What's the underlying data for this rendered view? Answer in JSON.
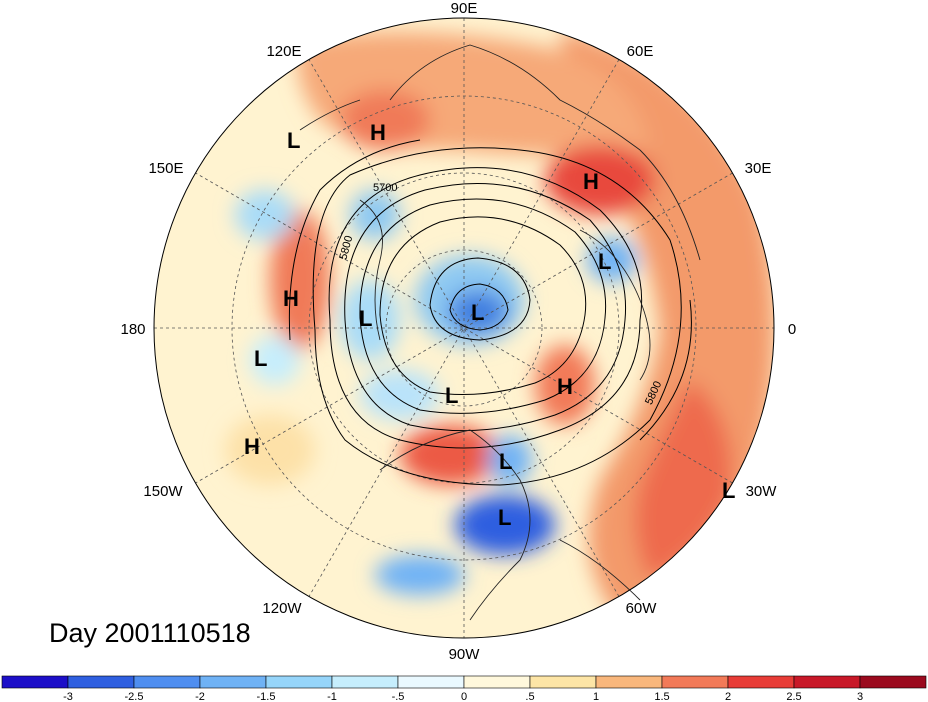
{
  "title": "Day 2001110518",
  "longitude_labels": {
    "lon_90e": "90E",
    "lon_60e": "60E",
    "lon_30e": "30E",
    "lon_0": "0",
    "lon_30w": "30W",
    "lon_60w": "60W",
    "lon_90w": "90W",
    "lon_120w": "120W",
    "lon_150w": "150W",
    "lon_180": "180",
    "lon_150e": "150E",
    "lon_120e": "120E"
  },
  "contour_labels": [
    "5700",
    "5800",
    "5800"
  ],
  "pressure_centers": [
    {
      "label": "L",
      "id": "l-1"
    },
    {
      "label": "H",
      "id": "h-1"
    },
    {
      "label": "H",
      "id": "h-2"
    },
    {
      "label": "L",
      "id": "l-2"
    },
    {
      "label": "H",
      "id": "h-3"
    },
    {
      "label": "L",
      "id": "l-3"
    },
    {
      "label": "L",
      "id": "l-4"
    },
    {
      "label": "L",
      "id": "l-5"
    },
    {
      "label": "L",
      "id": "l-6"
    },
    {
      "label": "H",
      "id": "h-4"
    },
    {
      "label": "H",
      "id": "h-5"
    },
    {
      "label": "L",
      "id": "l-7"
    },
    {
      "label": "L",
      "id": "l-8"
    },
    {
      "label": "L",
      "id": "l-9"
    }
  ],
  "colorbar": {
    "ticks": [
      "-3",
      "-2.5",
      "-2",
      "-1.5",
      "-1",
      "-.5",
      "0",
      ".5",
      "1",
      "1.5",
      "2",
      "2.5",
      "3"
    ],
    "colors": [
      "#1c0fc8",
      "#2f5fe0",
      "#4f8ef0",
      "#6fb2f5",
      "#96d5fa",
      "#c6eefd",
      "#eaf9ff",
      "#fff8dc",
      "#fde5a6",
      "#f9b77c",
      "#f27a58",
      "#e83c37",
      "#c81828",
      "#9b0a1e"
    ]
  }
}
